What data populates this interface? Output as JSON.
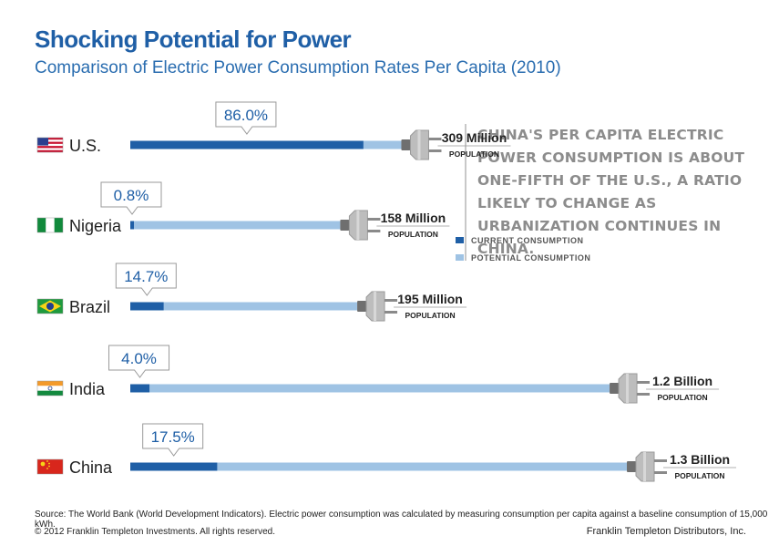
{
  "header": {
    "title": "Shocking Potential for Power",
    "subtitle": "Comparison of Electric Power Consumption Rates Per Capita (2010)"
  },
  "callout": "China's per capita electric power consumption is about one-fifth of the U.S., a ratio likely to change as urbanization continues in China.",
  "legend": {
    "current": "CURRENT CONSUMPTION",
    "potential": "POTENTIAL CONSUMPTION"
  },
  "colors": {
    "current": "#1f5fa6",
    "potential": "#9fc3e4",
    "plug": "#b9b9b9"
  },
  "chart_data": {
    "type": "bar",
    "categories": [
      "U.S.",
      "Nigeria",
      "Brazil",
      "India",
      "China"
    ],
    "series": [
      {
        "name": "CURRENT CONSUMPTION",
        "values": [
          86.0,
          0.8,
          14.7,
          4.0,
          17.5
        ]
      }
    ],
    "value_labels": [
      "86.0%",
      "0.8%",
      "14.7%",
      "4.0%",
      "17.5%"
    ],
    "population_millions": [
      309,
      158,
      195,
      1200,
      1300
    ],
    "population_labels": [
      "309 Million",
      "158 Million",
      "195 Million",
      "1.2 Billion",
      "1.3 Billion"
    ],
    "population_caption": "POPULATION",
    "flag_icons": [
      "us-flag-icon",
      "nigeria-flag-icon",
      "brazil-flag-icon",
      "india-flag-icon",
      "china-flag-icon"
    ]
  },
  "footer": {
    "source": "Source: The World Bank (World Development Indicators). Electric power consumption was calculated by measuring consumption per capita against a baseline consumption of 15,000 kWh.",
    "copyright": "© 2012 Franklin Templeton Investments. All rights reserved.",
    "company": "Franklin Templeton Distributors, Inc."
  }
}
